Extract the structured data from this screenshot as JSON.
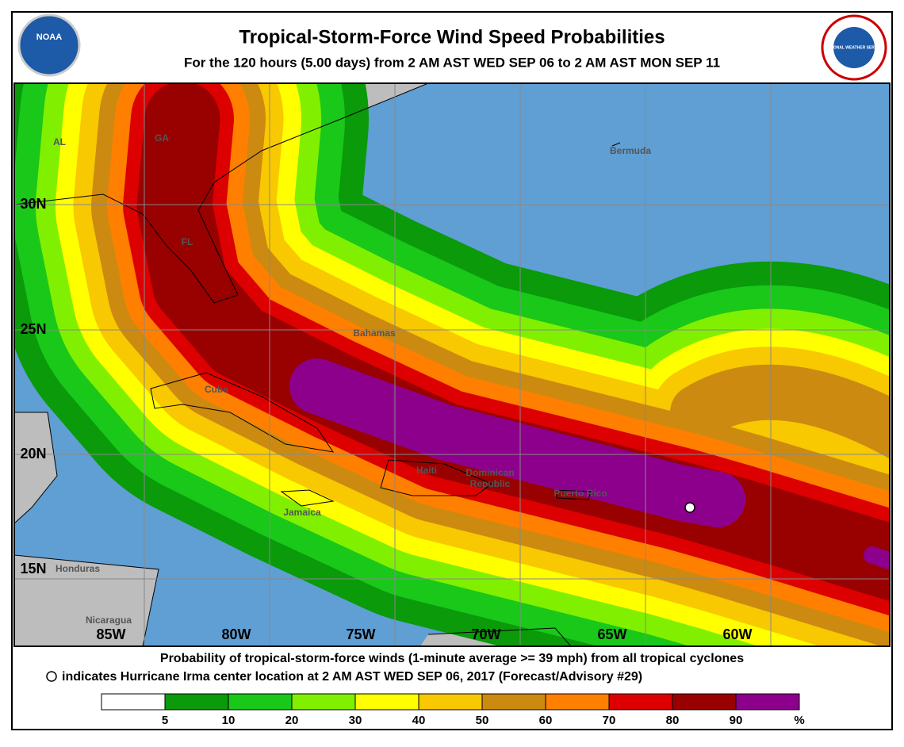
{
  "header": {
    "title": "Tropical-Storm-Force Wind Speed Probabilities",
    "subtitle": "For the 120 hours (5.00 days) from 2 AM AST WED SEP 06 to 2 AM AST MON SEP 11"
  },
  "logos": {
    "noaa": "NOAA",
    "nws": "NATIONAL WEATHER SERVICE"
  },
  "map": {
    "lon_labels": [
      "85W",
      "80W",
      "75W",
      "70W",
      "65W",
      "60W"
    ],
    "lat_labels": [
      "30N",
      "25N",
      "20N",
      "15N"
    ],
    "places": [
      "Bermuda",
      "AL",
      "GA",
      "FL",
      "Bahamas",
      "Cuba",
      "Haiti",
      "Dominican",
      "Republic",
      "Puerto Rico",
      "Jamaica",
      "Honduras",
      "Nicaragua"
    ]
  },
  "footer": {
    "line1": "Probability of tropical-storm-force winds (1-minute average >= 39 mph) from all tropical cyclones",
    "line2": "indicates Hurricane Irma center location at 2 AM AST WED SEP 06, 2017 (Forecast/Advisory #29)"
  },
  "legend": {
    "ticks": [
      5,
      10,
      20,
      30,
      40,
      50,
      60,
      70,
      80,
      90
    ],
    "unit": "%",
    "colors": [
      "#ffffff",
      "#0a9a0a",
      "#19c819",
      "#80f000",
      "#ffff00",
      "#f8c800",
      "#cc8a10",
      "#ff8000",
      "#dd0000",
      "#990000",
      "#8c008c"
    ]
  }
}
